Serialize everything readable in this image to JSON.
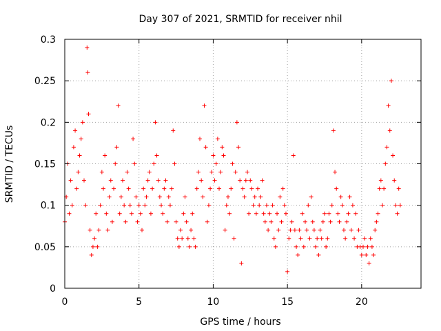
{
  "chart_data": {
    "type": "scatter",
    "title": "Day 307 of 2021, SRMTID for receiver nhil",
    "xlabel": "GPS time / hours",
    "ylabel": "SRMTID / TECUs",
    "xlim": [
      0,
      24
    ],
    "ylim": [
      0,
      0.3
    ],
    "x_ticks": [
      0,
      5,
      10,
      15,
      20
    ],
    "x_tick_labels": [
      "0",
      "5",
      "10",
      "15",
      "20"
    ],
    "y_ticks": [
      0,
      0.05,
      0.1,
      0.15,
      0.2,
      0.25,
      0.3
    ],
    "y_tick_labels": [
      "0",
      "0.05",
      "0.1",
      "0.15",
      "0.2",
      "0.25",
      "0.3"
    ],
    "grid": true,
    "marker": "plus",
    "series": [
      {
        "name": "SRMTID",
        "color": "#ff0000",
        "x": [
          0.0,
          0.1,
          0.2,
          0.3,
          0.4,
          0.5,
          0.6,
          0.7,
          0.8,
          0.9,
          1.0,
          1.1,
          1.2,
          1.3,
          1.4,
          1.5,
          1.55,
          1.6,
          1.7,
          1.8,
          1.9,
          2.0,
          2.1,
          2.2,
          2.3,
          2.4,
          2.5,
          2.6,
          2.7,
          2.8,
          2.9,
          3.0,
          3.1,
          3.2,
          3.3,
          3.4,
          3.5,
          3.6,
          3.7,
          3.8,
          3.9,
          4.0,
          4.1,
          4.2,
          4.3,
          4.4,
          4.5,
          4.6,
          4.7,
          4.8,
          4.9,
          5.0,
          5.1,
          5.2,
          5.3,
          5.4,
          5.5,
          5.6,
          5.7,
          5.8,
          5.9,
          6.0,
          6.1,
          6.2,
          6.3,
          6.4,
          6.5,
          6.6,
          6.7,
          6.8,
          6.9,
          7.0,
          7.1,
          7.2,
          7.3,
          7.4,
          7.5,
          7.6,
          7.7,
          7.8,
          7.9,
          8.0,
          8.1,
          8.2,
          8.3,
          8.4,
          8.5,
          8.6,
          8.7,
          8.8,
          8.9,
          9.0,
          9.1,
          9.2,
          9.3,
          9.4,
          9.5,
          9.6,
          9.7,
          9.8,
          9.9,
          10.0,
          10.1,
          10.2,
          10.3,
          10.4,
          10.5,
          10.6,
          10.7,
          10.8,
          10.9,
          11.0,
          11.1,
          11.2,
          11.3,
          11.4,
          11.5,
          11.6,
          11.7,
          11.8,
          11.9,
          12.0,
          12.1,
          12.2,
          12.3,
          12.4,
          12.5,
          12.6,
          12.7,
          12.8,
          12.9,
          13.0,
          13.1,
          13.2,
          13.3,
          13.4,
          13.5,
          13.6,
          13.7,
          13.8,
          13.9,
          14.0,
          14.1,
          14.2,
          14.3,
          14.4,
          14.5,
          14.6,
          14.7,
          14.8,
          14.9,
          15.0,
          15.1,
          15.2,
          15.3,
          15.4,
          15.5,
          15.6,
          15.7,
          15.8,
          15.9,
          16.0,
          16.1,
          16.2,
          16.3,
          16.4,
          16.5,
          16.6,
          16.7,
          16.8,
          16.9,
          17.0,
          17.1,
          17.2,
          17.3,
          17.4,
          17.5,
          17.6,
          17.7,
          17.8,
          17.9,
          18.0,
          18.1,
          18.2,
          18.3,
          18.4,
          18.5,
          18.6,
          18.7,
          18.8,
          18.9,
          19.0,
          19.1,
          19.2,
          19.3,
          19.4,
          19.5,
          19.6,
          19.7,
          19.8,
          19.9,
          20.0,
          20.1,
          20.2,
          20.3,
          20.4,
          20.5,
          20.6,
          20.7,
          20.8,
          20.9,
          21.0,
          21.1,
          21.2,
          21.3,
          21.4,
          21.5,
          21.6,
          21.7,
          21.8,
          21.9,
          22.0,
          22.1,
          22.2,
          22.3,
          22.4,
          22.5,
          22.6
        ],
        "y": [
          0.08,
          0.11,
          0.15,
          0.09,
          0.13,
          0.1,
          0.17,
          0.19,
          0.12,
          0.14,
          0.16,
          0.18,
          0.2,
          0.13,
          0.1,
          0.29,
          0.26,
          0.21,
          0.07,
          0.04,
          0.05,
          0.06,
          0.09,
          0.05,
          0.07,
          0.1,
          0.14,
          0.12,
          0.16,
          0.09,
          0.07,
          0.11,
          0.13,
          0.08,
          0.12,
          0.15,
          0.17,
          0.22,
          0.09,
          0.11,
          0.13,
          0.1,
          0.08,
          0.14,
          0.12,
          0.1,
          0.09,
          0.18,
          0.15,
          0.11,
          0.08,
          0.1,
          0.09,
          0.07,
          0.12,
          0.1,
          0.11,
          0.13,
          0.14,
          0.09,
          0.12,
          0.15,
          0.2,
          0.16,
          0.13,
          0.11,
          0.1,
          0.09,
          0.12,
          0.13,
          0.08,
          0.11,
          0.1,
          0.12,
          0.19,
          0.15,
          0.08,
          0.06,
          0.05,
          0.07,
          0.06,
          0.09,
          0.11,
          0.08,
          0.06,
          0.05,
          0.07,
          0.09,
          0.06,
          0.05,
          0.12,
          0.14,
          0.18,
          0.13,
          0.11,
          0.22,
          0.17,
          0.08,
          0.1,
          0.12,
          0.14,
          0.16,
          0.13,
          0.15,
          0.18,
          0.12,
          0.14,
          0.17,
          0.16,
          0.07,
          0.1,
          0.11,
          0.09,
          0.12,
          0.15,
          0.06,
          0.14,
          0.2,
          0.17,
          0.13,
          0.03,
          0.12,
          0.11,
          0.13,
          0.14,
          0.09,
          0.13,
          0.12,
          0.1,
          0.11,
          0.09,
          0.12,
          0.1,
          0.11,
          0.13,
          0.09,
          0.08,
          0.1,
          0.07,
          0.09,
          0.08,
          0.1,
          0.06,
          0.05,
          0.09,
          0.07,
          0.11,
          0.08,
          0.12,
          0.1,
          0.09,
          0.02,
          0.06,
          0.07,
          0.08,
          0.16,
          0.07,
          0.05,
          0.04,
          0.07,
          0.06,
          0.09,
          0.05,
          0.08,
          0.07,
          0.1,
          0.06,
          0.11,
          0.08,
          0.07,
          0.05,
          0.06,
          0.04,
          0.07,
          0.06,
          0.08,
          0.09,
          0.05,
          0.06,
          0.09,
          0.08,
          0.1,
          0.19,
          0.14,
          0.12,
          0.09,
          0.08,
          0.11,
          0.1,
          0.07,
          0.06,
          0.08,
          0.09,
          0.11,
          0.07,
          0.1,
          0.06,
          0.09,
          0.05,
          0.07,
          0.05,
          0.04,
          0.05,
          0.06,
          0.04,
          0.05,
          0.03,
          0.06,
          0.05,
          0.04,
          0.07,
          0.08,
          0.09,
          0.12,
          0.13,
          0.1,
          0.12,
          0.15,
          0.17,
          0.22,
          0.19,
          0.25,
          0.16,
          0.13,
          0.1,
          0.09,
          0.12,
          0.1
        ]
      }
    ]
  }
}
